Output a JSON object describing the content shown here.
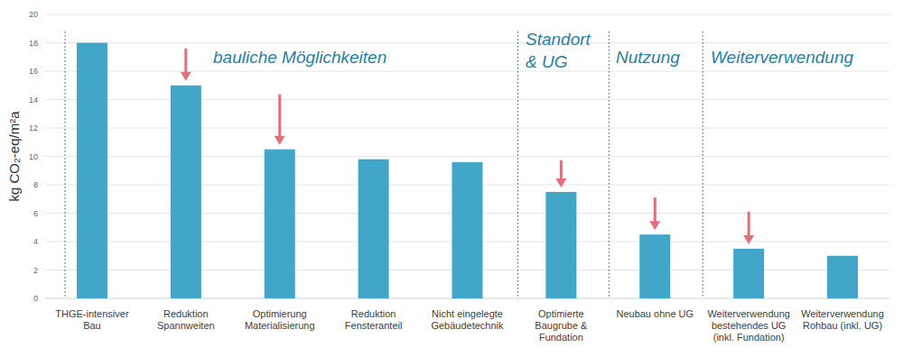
{
  "chart_data": {
    "type": "bar",
    "y_label": "kg CO₂-eq/m²a",
    "annotations": [
      "bauliche Möglichkeiten",
      "Standort & UG",
      "Nutzung",
      "Weiterverwendung"
    ],
    "categories": [
      "THGE-intensiver\nBau",
      "Reduktion\nSpannweiten",
      "Optimierung\nMaterialisierung",
      "Reduktion\nFensteranteil",
      "Nicht eingelegte\nGebäudetechnik",
      "Optimierte\nBaugrube &\nFundation",
      "Neubau ohne UG",
      "Weiterverwendung\nbestehendes UG\n(inkl. Fundation)",
      "Weiterverwendung\nRohbau (inkl. UG)"
    ],
    "values": [
      18,
      15,
      10.5,
      9.8,
      9.6,
      7.5,
      4.5,
      3.5,
      3.0
    ],
    "color": "#42a6c9",
    "ylim": [
      0,
      20
    ],
    "yticks": [
      0,
      2,
      4,
      6,
      8,
      10,
      12,
      14,
      16,
      18,
      20
    ],
    "grid": true
  }
}
